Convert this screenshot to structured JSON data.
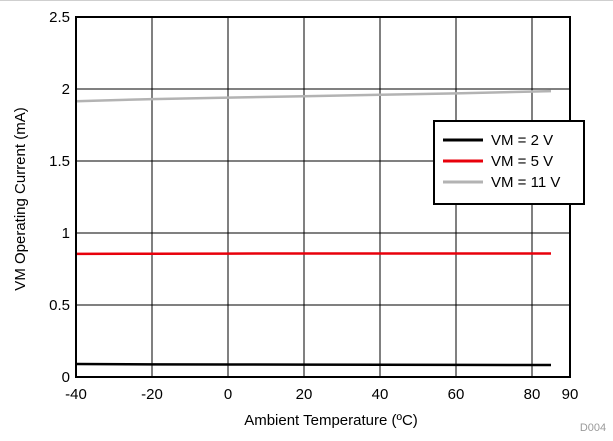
{
  "chart_data": {
    "type": "line",
    "title": "",
    "xlabel": "Ambient Temperature (ºC)",
    "ylabel": "VM Operating Current (mA)",
    "xlim": [
      -40,
      90
    ],
    "ylim": [
      0,
      2.5
    ],
    "xticks": [
      -40,
      -20,
      0,
      20,
      40,
      60,
      80,
      90
    ],
    "yticks": [
      0,
      0.5,
      1,
      1.5,
      2,
      2.5
    ],
    "xtick_labels": [
      "-40",
      "-20",
      "0",
      "20",
      "40",
      "60",
      "80",
      "90"
    ],
    "ytick_labels": [
      "0",
      "0.5",
      "1",
      "1.5",
      "2",
      "2.5"
    ],
    "grid": true,
    "legend_position": "right",
    "figure_id": "D004",
    "series": [
      {
        "name": "VM = 2 V",
        "color": "#000000",
        "x": [
          -40,
          -20,
          0,
          20,
          40,
          60,
          85
        ],
        "y": [
          0.09,
          0.088,
          0.087,
          0.086,
          0.085,
          0.084,
          0.083
        ]
      },
      {
        "name": "VM = 5 V",
        "color": "#e8000b",
        "x": [
          -40,
          -20,
          0,
          20,
          40,
          60,
          85
        ],
        "y": [
          0.855,
          0.856,
          0.857,
          0.858,
          0.858,
          0.858,
          0.858
        ]
      },
      {
        "name": "VM = 11 V",
        "color": "#b3b3b3",
        "x": [
          -40,
          -20,
          0,
          20,
          40,
          60,
          85
        ],
        "y": [
          1.915,
          1.93,
          1.94,
          1.95,
          1.96,
          1.97,
          1.985
        ]
      }
    ]
  }
}
